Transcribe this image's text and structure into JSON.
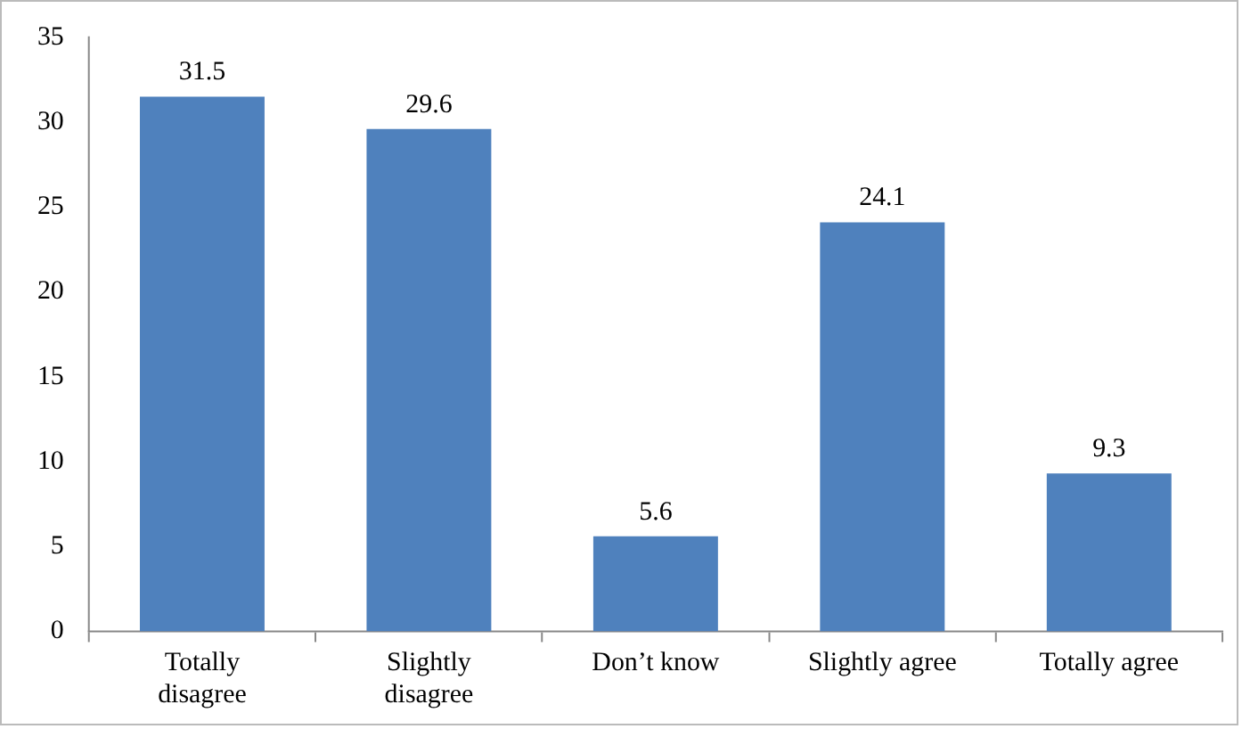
{
  "chart_data": {
    "type": "bar",
    "categories": [
      "Totally disagree",
      "Slightly disagree",
      "Don’t know",
      "Slightly agree",
      "Totally agree"
    ],
    "values": [
      31.5,
      29.6,
      5.6,
      24.1,
      9.3
    ],
    "color": "#4f81bd",
    "ylim": [
      0,
      35
    ],
    "yticks": [
      0,
      5,
      10,
      15,
      20,
      25,
      30,
      35
    ],
    "grid": false,
    "legend": false,
    "data_labels": true
  }
}
